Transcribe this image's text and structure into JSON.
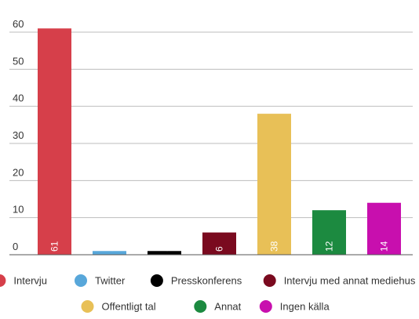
{
  "chart_data": {
    "type": "bar",
    "title": "",
    "xlabel": "",
    "ylabel": "",
    "ylim": [
      0,
      60
    ],
    "y_ticks": [
      0,
      10,
      20,
      30,
      40,
      50,
      60
    ],
    "grid": true,
    "legend_position": "bottom",
    "series": [
      {
        "name": "Intervju",
        "value": 61,
        "color": "#d63f4a"
      },
      {
        "name": "Twitter",
        "value": 1,
        "color": "#58a7da"
      },
      {
        "name": "Presskonferens",
        "value": 1,
        "color": "#000000"
      },
      {
        "name": "Intervju med annat mediehus",
        "value": 6,
        "color": "#7a0a1f"
      },
      {
        "name": "Offentligt tal",
        "value": 38,
        "color": "#e8c057"
      },
      {
        "name": "Annat",
        "value": 12,
        "color": "#1c8a40"
      },
      {
        "name": "Ingen källa",
        "value": 14,
        "color": "#c80fae"
      }
    ]
  }
}
